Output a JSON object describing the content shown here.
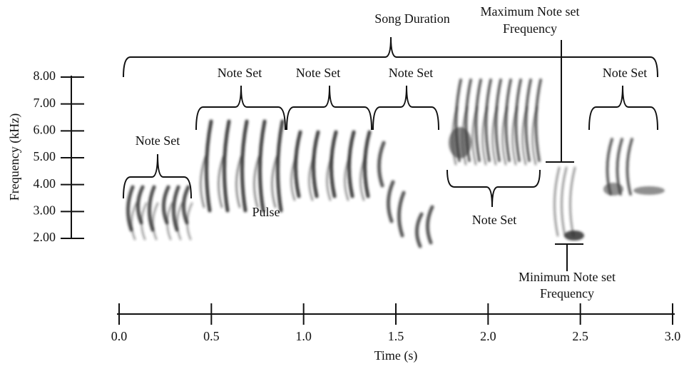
{
  "song_duration": "Song Duration",
  "note_sets": [
    "Note Set",
    "Note Set",
    "Note Set",
    "Note Set",
    "Note Set",
    "Note Set"
  ],
  "pulse": "Pulse",
  "maximum_frequency": [
    "Maximum Note set",
    "Frequency"
  ],
  "minimum_frequency": [
    "Minimum Note set",
    "Frequency"
  ],
  "y_axis": {
    "label": "Frequency (kHz)",
    "ticks": [
      "8.00",
      "7.00",
      "6.00",
      "5.00",
      "4.00",
      "3.00",
      "2.00"
    ]
  },
  "x_axis": {
    "label": "Time (s)",
    "ticks": [
      "0.0",
      "0.5",
      "1.0",
      "1.5",
      "2.0",
      "2.5",
      "3.0"
    ]
  }
}
